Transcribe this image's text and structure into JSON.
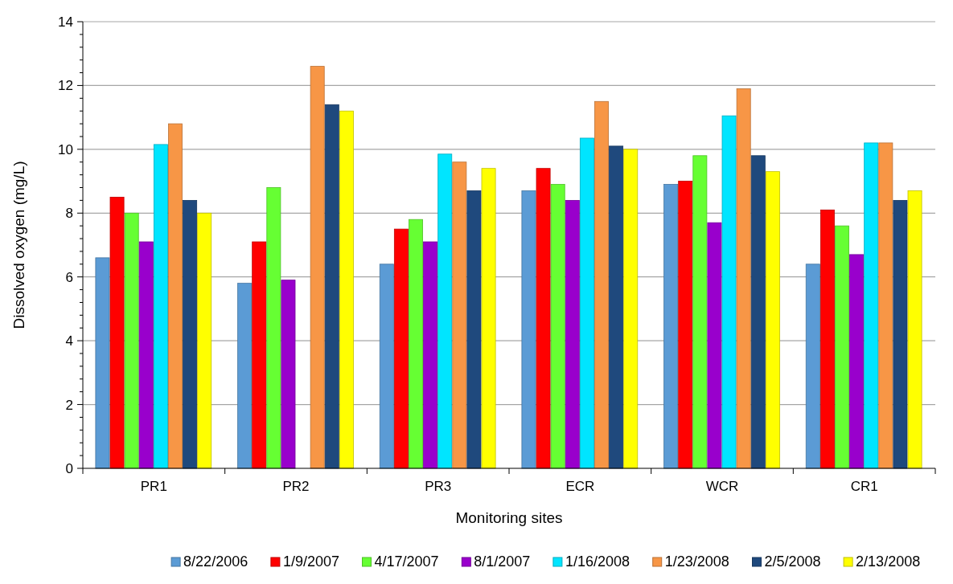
{
  "chart_data": {
    "type": "bar",
    "xlabel": "Monitoring sites",
    "ylabel": "Dissolved oxygen (mg/L)",
    "categories": [
      "PR1",
      "PR2",
      "PR3",
      "ECR",
      "WCR",
      "CR1"
    ],
    "series": [
      {
        "name": "8/22/2006",
        "color": "#5b9bd5",
        "values": [
          6.6,
          5.8,
          6.4,
          8.7,
          8.9,
          6.4
        ]
      },
      {
        "name": "1/9/2007",
        "color": "#ff0000",
        "values": [
          8.5,
          7.1,
          7.5,
          9.4,
          9.0,
          8.1
        ]
      },
      {
        "name": "4/17/2007",
        "color": "#66ff33",
        "values": [
          8.0,
          8.8,
          7.8,
          8.9,
          9.8,
          7.6
        ]
      },
      {
        "name": "8/1/2007",
        "color": "#9900cc",
        "values": [
          7.1,
          5.9,
          7.1,
          8.4,
          7.7,
          6.7
        ]
      },
      {
        "name": "1/16/2008",
        "color": "#00e5ff",
        "values": [
          10.15,
          null,
          9.85,
          10.35,
          11.05,
          10.2
        ]
      },
      {
        "name": "1/23/2008",
        "color": "#f79646",
        "values": [
          10.8,
          12.6,
          9.6,
          11.5,
          11.9,
          10.2
        ]
      },
      {
        "name": "2/5/2008",
        "color": "#1f497d",
        "values": [
          8.4,
          11.4,
          8.7,
          10.1,
          9.8,
          8.4
        ]
      },
      {
        "name": "2/13/2008",
        "color": "#ffff00",
        "values": [
          8.0,
          11.2,
          9.4,
          10.0,
          9.3,
          8.7
        ]
      }
    ],
    "ylim": [
      0,
      14
    ],
    "yticks": [
      0,
      {
        "value": 0.4,
        "label": null
      },
      {
        "value": 0.8,
        "label": null
      },
      {
        "value": 1.2,
        "label": null
      },
      {
        "value": 1.6,
        "label": null
      },
      2,
      {
        "value": 2.4,
        "label": null
      },
      {
        "value": 2.8,
        "label": null
      },
      {
        "value": 3.2,
        "label": null
      },
      {
        "value": 3.6,
        "label": null
      },
      4,
      {
        "value": 4.4,
        "label": null
      },
      {
        "value": 4.8,
        "label": null
      },
      {
        "value": 5.2,
        "label": null
      },
      {
        "value": 5.6,
        "label": null
      },
      6,
      {
        "value": 6.4,
        "label": null
      },
      {
        "value": 6.8,
        "label": null
      },
      {
        "value": 7.2,
        "label": null
      },
      {
        "value": 7.6,
        "label": null
      },
      8,
      {
        "value": 8.4,
        "label": null
      },
      {
        "value": 8.8,
        "label": null
      },
      {
        "value": 9.2,
        "label": null
      },
      {
        "value": 9.6,
        "label": null
      },
      10,
      {
        "value": 10.4,
        "label": null
      },
      {
        "value": 10.8,
        "label": null
      },
      {
        "value": 11.2,
        "label": null
      },
      {
        "value": 11.6,
        "label": null
      },
      12,
      {
        "value": 12.4,
        "label": null
      },
      {
        "value": 12.8,
        "label": null
      },
      {
        "value": 13.2,
        "label": null
      },
      {
        "value": 13.6,
        "label": null
      },
      14
    ],
    "grid": "y",
    "legend": "bottom"
  }
}
